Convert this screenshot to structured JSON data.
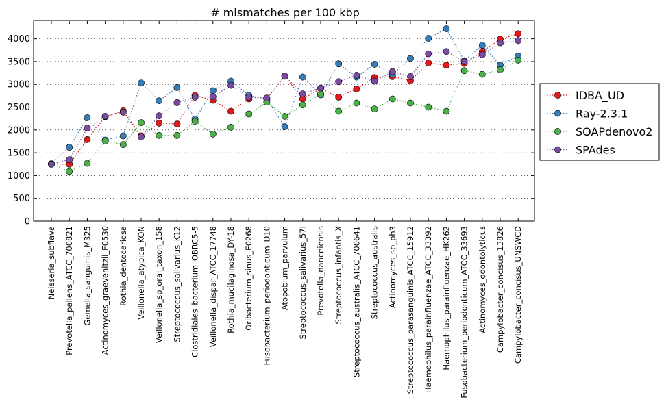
{
  "chart_data": {
    "type": "line",
    "title": "# mismatches per 100 kbp",
    "xlabel": "",
    "ylabel": "",
    "ylim": [
      0,
      4400
    ],
    "yticks": [
      0,
      500,
      1000,
      1500,
      2000,
      2500,
      3000,
      3500,
      4000
    ],
    "grid": "horizontal dotted",
    "legend_position": "right, outside plot",
    "categories": [
      "Neisseria_subflava",
      "Prevotella_pallens_ATCC_700821",
      "Gemella_sanguinis_M325",
      "Actinomyces_graevenitzii_F0530",
      "Rothia_dentocariosa",
      "Veillonella_atypica_KON",
      "Veillonella_sp_oral_taxon_158",
      "Streptococcus_salivarius_K12",
      "Clostridiales_bacterium_OBRC5-5",
      "Veillonella_dispar_ATCC_17748",
      "Rothia_mucilaginosa_DY-18",
      "Oribacterium_sinus_F0268",
      "Fusobacterium_periodonticum_D10",
      "Atopobium_parvulum",
      "Streptococcus_salivarius_57I",
      "Prevotella_nanceiensis",
      "Streptococcus_infantis_X",
      "Streptococcus_australis_ATCC_700641",
      "Streptococcus_australis",
      "Actinomyces_sp_ph3",
      "Streptococcus_parasanguinis_ATCC_15912",
      "Haemophilus_parainfluenzae_ATCC_33392",
      "Haemophilus_parainfluenzae_HK262",
      "Fusobacterium_periodonticum_ATCC_33693",
      "Actinomyces_odontolyticus",
      "Campylobacter_concisus_13826",
      "Campylobacter_concisus_UNSWCD"
    ],
    "series": [
      {
        "name": "IDBA_UD",
        "color": "#e41a1c",
        "values": [
          1250,
          1250,
          1790,
          2290,
          2420,
          1870,
          2150,
          2130,
          2760,
          2650,
          2410,
          2680,
          2680,
          3180,
          2680,
          2910,
          2720,
          2900,
          3150,
          3170,
          3080,
          3470,
          3420,
          3460,
          3720,
          3990,
          4110
        ]
      },
      {
        "name": "Ray-2.3.1",
        "color": "#377eb8",
        "values": [
          1260,
          1620,
          2270,
          1780,
          1870,
          3030,
          2640,
          2930,
          2240,
          2860,
          3070,
          2760,
          2680,
          2070,
          3160,
          2770,
          3450,
          3160,
          3440,
          3220,
          3570,
          4010,
          4220,
          3520,
          3860,
          3420,
          3620
        ]
      },
      {
        "name": "SOAPdenovo2",
        "color": "#4daf4a",
        "values": [
          1260,
          1090,
          1270,
          1760,
          1680,
          2160,
          1880,
          1880,
          2190,
          1910,
          2060,
          2350,
          2610,
          2300,
          2550,
          2790,
          2410,
          2590,
          2460,
          2680,
          2590,
          2500,
          2410,
          3300,
          3220,
          3320,
          3530
        ]
      },
      {
        "name": "SPAdes",
        "color": "#7b4ba1",
        "values": [
          1250,
          1350,
          2040,
          2300,
          2390,
          1850,
          2310,
          2600,
          2720,
          2730,
          2980,
          2720,
          2700,
          3180,
          2790,
          2920,
          3060,
          3200,
          3070,
          3280,
          3170,
          3670,
          3720,
          3500,
          3650,
          3910,
          3960
        ]
      }
    ]
  }
}
